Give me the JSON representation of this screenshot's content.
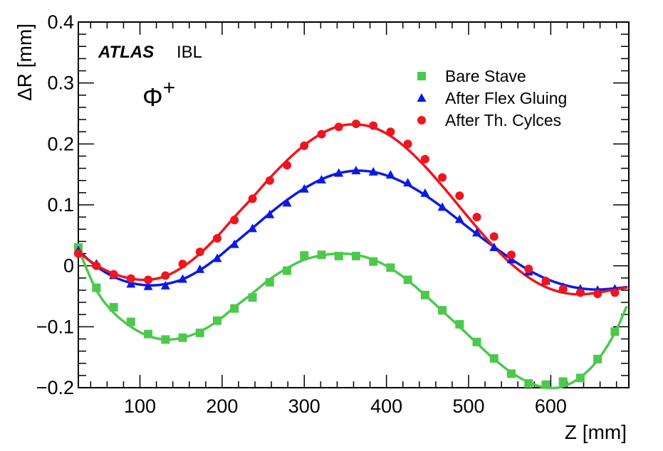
{
  "chart_data": {
    "type": "scatter",
    "xlabel": "Z [mm]",
    "ylabel": "ΔR [mm]",
    "xlim": [
      25,
      695
    ],
    "ylim": [
      -0.2,
      0.4
    ],
    "xticks": [
      "100",
      "200",
      "300",
      "400",
      "500",
      "600"
    ],
    "xtick_values": [
      100,
      200,
      300,
      400,
      500,
      600
    ],
    "yticks": [
      "−0.2",
      "−0.1",
      "0",
      "0.1",
      "0.2",
      "0.3",
      "0.4"
    ],
    "ytick_values": [
      -0.2,
      -0.1,
      0,
      0.1,
      0.2,
      0.3,
      0.4
    ],
    "annotations": {
      "experiment": "ATLAS",
      "detector": "IBL",
      "phi_symbol": "Φ",
      "phi_sign": "+"
    },
    "series": [
      {
        "name": "Bare Stave",
        "marker": "square",
        "color": "#4cc94c",
        "x": [
          25,
          47,
          68,
          89,
          110,
          131,
          152,
          173,
          194,
          215,
          237,
          258,
          279,
          300,
          321,
          342,
          363,
          384,
          405,
          426,
          447,
          468,
          489,
          510,
          531,
          552,
          573,
          594,
          615,
          636,
          657,
          678
        ],
        "y": [
          0.03,
          -0.036,
          -0.068,
          -0.092,
          -0.112,
          -0.121,
          -0.118,
          -0.11,
          -0.09,
          -0.07,
          -0.052,
          -0.027,
          -0.008,
          0.017,
          0.018,
          0.016,
          0.016,
          0.007,
          -0.003,
          -0.023,
          -0.048,
          -0.073,
          -0.096,
          -0.125,
          -0.152,
          -0.177,
          -0.193,
          -0.195,
          -0.19,
          -0.184,
          -0.153,
          -0.108
        ],
        "fit_x": [
          25,
          47,
          68,
          89,
          110,
          131,
          152,
          173,
          194,
          215,
          237,
          258,
          279,
          300,
          321,
          342,
          363,
          384,
          405,
          426,
          447,
          468,
          489,
          510,
          531,
          552,
          573,
          594,
          615,
          636,
          657,
          678,
          692
        ],
        "fit_y": [
          0.028,
          -0.04,
          -0.077,
          -0.1,
          -0.115,
          -0.121,
          -0.118,
          -0.108,
          -0.091,
          -0.068,
          -0.045,
          -0.022,
          -0.004,
          0.01,
          0.017,
          0.02,
          0.018,
          0.01,
          -0.004,
          -0.024,
          -0.048,
          -0.074,
          -0.1,
          -0.127,
          -0.153,
          -0.175,
          -0.191,
          -0.2,
          -0.198,
          -0.183,
          -0.155,
          -0.11,
          -0.068
        ]
      },
      {
        "name": "After Flex Gluing",
        "marker": "triangle",
        "color": "#0b19e8",
        "x": [
          25,
          47,
          68,
          89,
          110,
          131,
          152,
          173,
          194,
          215,
          237,
          258,
          279,
          300,
          321,
          342,
          363,
          384,
          405,
          426,
          447,
          468,
          489,
          510,
          531,
          552,
          573,
          594,
          615,
          636,
          657,
          678
        ],
        "y": [
          0.025,
          0.003,
          -0.016,
          -0.03,
          -0.034,
          -0.033,
          -0.022,
          -0.006,
          0.012,
          0.035,
          0.061,
          0.084,
          0.103,
          0.126,
          0.141,
          0.152,
          0.156,
          0.154,
          0.149,
          0.136,
          0.119,
          0.096,
          0.076,
          0.054,
          0.03,
          0.01,
          -0.01,
          -0.025,
          -0.035,
          -0.038,
          -0.04,
          -0.038
        ],
        "fit_x": [
          25,
          47,
          68,
          89,
          110,
          131,
          152,
          173,
          194,
          215,
          237,
          258,
          279,
          300,
          321,
          342,
          363,
          384,
          405,
          426,
          447,
          468,
          489,
          510,
          531,
          552,
          573,
          594,
          615,
          636,
          657,
          678,
          692
        ],
        "fit_y": [
          0.025,
          -0.001,
          -0.018,
          -0.028,
          -0.032,
          -0.03,
          -0.022,
          -0.007,
          0.013,
          0.037,
          0.062,
          0.086,
          0.108,
          0.127,
          0.142,
          0.152,
          0.156,
          0.154,
          0.146,
          0.133,
          0.116,
          0.096,
          0.074,
          0.052,
          0.031,
          0.011,
          -0.007,
          -0.021,
          -0.031,
          -0.037,
          -0.039,
          -0.037,
          -0.035
        ]
      },
      {
        "name": "After Th. Cylces",
        "marker": "circle",
        "color": "#f0141e",
        "x": [
          25,
          47,
          68,
          89,
          110,
          131,
          152,
          173,
          194,
          215,
          237,
          258,
          279,
          300,
          321,
          342,
          363,
          384,
          405,
          426,
          447,
          468,
          489,
          510,
          531,
          552,
          573,
          594,
          615,
          636,
          657,
          678
        ],
        "y": [
          0.02,
          0.0,
          -0.014,
          -0.021,
          -0.023,
          -0.016,
          0.003,
          0.023,
          0.045,
          0.075,
          0.11,
          0.14,
          0.165,
          0.197,
          0.216,
          0.228,
          0.233,
          0.23,
          0.22,
          0.2,
          0.175,
          0.145,
          0.115,
          0.08,
          0.048,
          0.018,
          -0.005,
          -0.025,
          -0.038,
          -0.044,
          -0.046,
          -0.044
        ],
        "fit_x": [
          25,
          47,
          68,
          89,
          110,
          131,
          152,
          173,
          194,
          215,
          237,
          258,
          279,
          300,
          321,
          342,
          363,
          384,
          405,
          426,
          447,
          468,
          489,
          510,
          531,
          552,
          573,
          594,
          615,
          636,
          657,
          678,
          692
        ],
        "fit_y": [
          0.022,
          0.001,
          -0.013,
          -0.021,
          -0.023,
          -0.017,
          -0.002,
          0.02,
          0.048,
          0.08,
          0.112,
          0.144,
          0.173,
          0.198,
          0.217,
          0.229,
          0.232,
          0.227,
          0.213,
          0.191,
          0.163,
          0.131,
          0.097,
          0.063,
          0.031,
          0.003,
          -0.019,
          -0.035,
          -0.044,
          -0.047,
          -0.044,
          -0.039,
          -0.036
        ]
      }
    ]
  }
}
